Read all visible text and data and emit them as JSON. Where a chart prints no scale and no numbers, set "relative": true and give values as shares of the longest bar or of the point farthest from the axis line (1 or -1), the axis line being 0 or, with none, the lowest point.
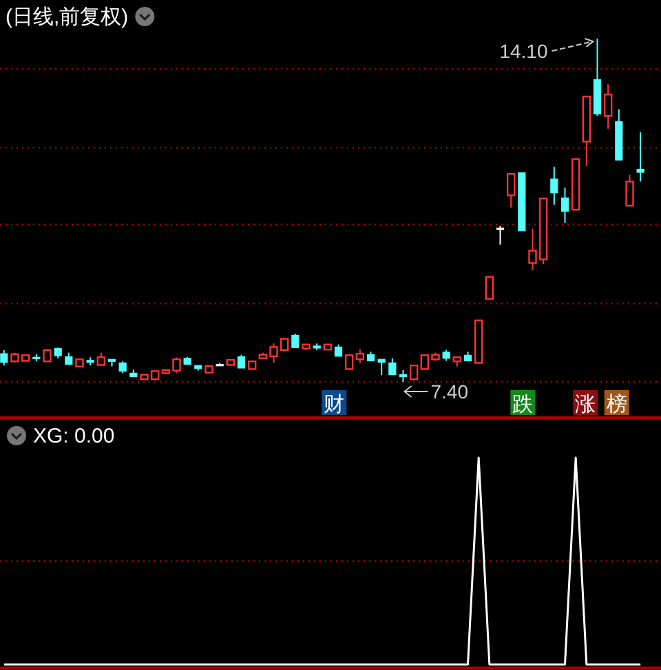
{
  "chart_data": [
    {
      "type": "candlestick",
      "title": "(日线,前复权)",
      "categories": [
        null,
        null,
        null,
        null,
        null,
        null,
        null,
        null,
        null,
        null,
        null,
        null,
        null,
        null,
        null,
        null,
        null,
        null,
        null,
        null,
        null,
        null,
        null,
        null,
        null,
        null,
        null,
        null,
        null,
        null,
        null,
        null,
        null,
        null,
        null,
        null,
        null,
        null,
        null,
        null,
        null,
        null,
        null,
        null,
        null,
        null,
        null,
        null,
        null,
        null,
        null,
        null,
        null,
        null,
        null,
        null,
        null,
        null,
        null,
        null
      ],
      "ohlc": [
        [
          7.95,
          8.02,
          7.72,
          7.78
        ],
        [
          7.8,
          7.97,
          7.78,
          7.94
        ],
        [
          7.81,
          7.92,
          7.81,
          7.92
        ],
        [
          7.88,
          7.94,
          7.8,
          7.86
        ],
        [
          7.8,
          8.02,
          7.8,
          8.02
        ],
        [
          8.05,
          8.07,
          7.86,
          7.91
        ],
        [
          7.89,
          7.97,
          7.74,
          7.74
        ],
        [
          7.7,
          7.84,
          7.7,
          7.84
        ],
        [
          7.82,
          7.88,
          7.72,
          7.78
        ],
        [
          7.73,
          7.97,
          7.73,
          7.88
        ],
        [
          7.84,
          7.84,
          7.7,
          7.8
        ],
        [
          7.77,
          7.8,
          7.57,
          7.61
        ],
        [
          7.57,
          7.64,
          7.5,
          7.5
        ],
        [
          7.45,
          7.54,
          7.45,
          7.54
        ],
        [
          7.45,
          7.61,
          7.45,
          7.61
        ],
        [
          7.57,
          7.63,
          7.57,
          7.63
        ],
        [
          7.62,
          7.88,
          7.57,
          7.84
        ],
        [
          7.86,
          7.89,
          7.74,
          7.74
        ],
        [
          7.72,
          7.72,
          7.62,
          7.66
        ],
        [
          7.58,
          7.71,
          7.58,
          7.71
        ],
        [
          7.74,
          7.77,
          7.72,
          7.74
        ],
        [
          7.73,
          7.83,
          7.73,
          7.83
        ],
        [
          7.89,
          7.93,
          7.67,
          7.67
        ],
        [
          7.65,
          7.8,
          7.65,
          7.8
        ],
        [
          7.86,
          7.97,
          7.86,
          7.93
        ],
        [
          7.9,
          8.15,
          7.77,
          8.08
        ],
        [
          8.02,
          8.24,
          8.02,
          8.24
        ],
        [
          8.31,
          8.34,
          8.07,
          8.07
        ],
        [
          8.05,
          8.13,
          8.02,
          8.13
        ],
        [
          8.1,
          8.15,
          8.02,
          8.06
        ],
        [
          8.03,
          8.13,
          8.03,
          8.13
        ],
        [
          8.08,
          8.13,
          7.9,
          7.9
        ],
        [
          7.65,
          7.92,
          7.65,
          7.92
        ],
        [
          7.84,
          8.04,
          7.77,
          7.95
        ],
        [
          7.93,
          7.99,
          7.81,
          7.81
        ],
        [
          7.84,
          7.84,
          7.53,
          7.78
        ],
        [
          7.77,
          7.86,
          7.54,
          7.54
        ],
        [
          7.54,
          7.63,
          7.4,
          7.5
        ],
        [
          7.45,
          7.72,
          7.45,
          7.72
        ],
        [
          7.65,
          7.92,
          7.65,
          7.92
        ],
        [
          7.84,
          7.97,
          7.81,
          7.93
        ],
        [
          7.98,
          8.02,
          7.81,
          7.86
        ],
        [
          7.8,
          7.88,
          7.7,
          7.88
        ],
        [
          7.92,
          7.99,
          7.81,
          7.81
        ],
        [
          7.77,
          8.6,
          7.77,
          8.6
        ],
        [
          9.02,
          9.45,
          9.02,
          9.45
        ],
        [
          10.4,
          10.44,
          10.08,
          10.4
        ],
        [
          11.04,
          11.46,
          10.8,
          11.46
        ],
        [
          11.48,
          11.48,
          10.35,
          10.35
        ],
        [
          9.72,
          10.39,
          9.58,
          9.96
        ],
        [
          9.79,
          10.98,
          9.7,
          10.98
        ],
        [
          11.36,
          11.6,
          10.86,
          11.09
        ],
        [
          10.99,
          11.19,
          10.5,
          10.73
        ],
        [
          10.76,
          11.75,
          10.76,
          11.75
        ],
        [
          12.09,
          12.97,
          11.61,
          12.97
        ],
        [
          13.3,
          14.1,
          12.59,
          12.63
        ],
        [
          12.59,
          13.21,
          12.34,
          13.01
        ],
        [
          12.48,
          12.72,
          11.73,
          11.73
        ],
        [
          10.84,
          11.44,
          10.84,
          11.31
        ],
        [
          11.55,
          12.27,
          11.31,
          11.49
        ]
      ],
      "colors": [
        "#54fcfc",
        "#ff3232",
        "#ff3232",
        "#54fcfc",
        "#ff3232",
        "#54fcfc",
        "#54fcfc",
        "#ff3232",
        "#54fcfc",
        "#ff3232",
        "#54fcfc",
        "#54fcfc",
        "#54fcfc",
        "#ff3232",
        "#ff3232",
        "#ff3232",
        "#ff3232",
        "#54fcfc",
        "#54fcfc",
        "#ff3232",
        "#ffffff",
        "#ff3232",
        "#54fcfc",
        "#ff3232",
        "#ff3232",
        "#ff3232",
        "#ff3232",
        "#54fcfc",
        "#ff3232",
        "#54fcfc",
        "#ff3232",
        "#54fcfc",
        "#ff3232",
        "#ff3232",
        "#54fcfc",
        "#54fcfc",
        "#54fcfc",
        "#54fcfc",
        "#ff3232",
        "#ff3232",
        "#ff3232",
        "#54fcfc",
        "#ff3232",
        "#54fcfc",
        "#ff3232",
        "#ff3232",
        "#ffffff",
        "#ff3232",
        "#54fcfc",
        "#ff3232",
        "#ff3232",
        "#54fcfc",
        "#54fcfc",
        "#ff3232",
        "#ff3232",
        "#54fcfc",
        "#ff3232",
        "#54fcfc",
        "#ff3232",
        "#54fcfc"
      ],
      "ref_lines": [
        {
          "axis": "y",
          "value": 13.51,
          "color": "#b00000",
          "line_style": "dotted"
        },
        {
          "axis": "y",
          "value": 11.97,
          "color": "#b00000",
          "line_style": "dotted"
        },
        {
          "axis": "y",
          "value": 10.47,
          "color": "#b00000",
          "line_style": "dotted"
        },
        {
          "axis": "y",
          "value": 8.93,
          "color": "#b00000",
          "line_style": "dotted"
        },
        {
          "axis": "y",
          "value": 7.4,
          "color": "#b00000",
          "line_style": "dotted"
        }
      ],
      "annotations": [
        "14.10",
        "7.40",
        "财",
        "跌",
        "涨",
        "榜"
      ]
    },
    {
      "type": "line",
      "title": "XG: 0.00",
      "relative": true,
      "ref_lines": [
        {
          "axis": "y",
          "value": 0.5,
          "color": "#b00000",
          "line_style": "dotted"
        }
      ],
      "categories": [
        null,
        null,
        null,
        null,
        null,
        null,
        null,
        null,
        null,
        null,
        null,
        null,
        null,
        null,
        null,
        null,
        null,
        null,
        null,
        null,
        null,
        null,
        null,
        null,
        null,
        null,
        null,
        null,
        null,
        null,
        null,
        null,
        null,
        null,
        null,
        null,
        null,
        null,
        null,
        null,
        null,
        null,
        null,
        null,
        null,
        null,
        null,
        null,
        null,
        null,
        null,
        null,
        null,
        null,
        null,
        null,
        null,
        null,
        null,
        null
      ],
      "series": [
        {
          "color": "#ffffff",
          "values": [
            0,
            0,
            0,
            0,
            0,
            0,
            0,
            0,
            0,
            0,
            0,
            0,
            0,
            0,
            0,
            0,
            0,
            0,
            0,
            0,
            0,
            0,
            0,
            0,
            0,
            0,
            0,
            0,
            0,
            0,
            0,
            0,
            0,
            0,
            0,
            0,
            0,
            0,
            0,
            0,
            0,
            0,
            0,
            0,
            1,
            0,
            0,
            0,
            0,
            0,
            0,
            0,
            0,
            1,
            0,
            0,
            0,
            0,
            0,
            0
          ]
        }
      ]
    }
  ]
}
